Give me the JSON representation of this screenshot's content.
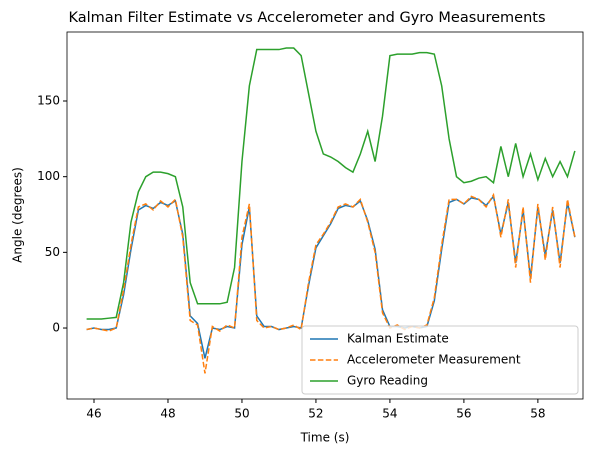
{
  "chart_data": {
    "type": "line",
    "title": "Kalman Filter Estimate vs Accelerometer and Gyro Measurements",
    "x_label": "Time (s)",
    "y_label": "Angle (degrees)",
    "x": [
      45.8,
      46.0,
      46.2,
      46.4,
      46.6,
      46.8,
      47.0,
      47.2,
      47.4,
      47.6,
      47.8,
      48.0,
      48.2,
      48.4,
      48.6,
      48.8,
      49.0,
      49.2,
      49.4,
      49.6,
      49.8,
      50.0,
      50.2,
      50.4,
      50.6,
      50.8,
      51.0,
      51.2,
      51.4,
      51.6,
      51.8,
      52.0,
      52.2,
      52.4,
      52.6,
      52.8,
      53.0,
      53.2,
      53.4,
      53.6,
      53.8,
      54.0,
      54.2,
      54.4,
      54.6,
      54.8,
      55.0,
      55.2,
      55.4,
      55.6,
      55.8,
      56.0,
      56.2,
      56.4,
      56.6,
      56.8,
      57.0,
      57.2,
      57.4,
      57.6,
      57.8,
      58.0,
      58.2,
      58.4,
      58.6,
      58.8,
      59.0
    ],
    "series": [
      {
        "name": "Kalman Estimate",
        "color": "#1f77b4",
        "dashed": false,
        "values": [
          -1,
          0,
          -1,
          -1,
          0,
          22,
          52,
          78,
          81,
          79,
          83,
          81,
          84,
          62,
          8,
          3,
          -20,
          0,
          -1,
          1,
          0,
          55,
          80,
          8,
          1,
          1,
          -1,
          0,
          1,
          0,
          28,
          53,
          61,
          69,
          79,
          81,
          80,
          84,
          71,
          52,
          12,
          1,
          1,
          0,
          1,
          0,
          1,
          18,
          52,
          83,
          85,
          82,
          86,
          85,
          81,
          87,
          62,
          83,
          43,
          78,
          33,
          80,
          48,
          78,
          43,
          83,
          60
        ]
      },
      {
        "name": "Accelerometer Measurement",
        "color": "#ff7f0e",
        "dashed": true,
        "values": [
          -1,
          0,
          -1,
          -2,
          0,
          25,
          55,
          80,
          82,
          78,
          84,
          80,
          85,
          60,
          5,
          2,
          -30,
          1,
          -2,
          2,
          0,
          60,
          82,
          5,
          0,
          1,
          -1,
          0,
          2,
          -1,
          30,
          55,
          62,
          70,
          80,
          82,
          80,
          85,
          70,
          50,
          10,
          0,
          2,
          -1,
          1,
          0,
          2,
          20,
          55,
          85,
          85,
          82,
          87,
          85,
          80,
          88,
          60,
          85,
          40,
          80,
          30,
          82,
          45,
          80,
          40,
          85,
          60
        ]
      },
      {
        "name": "Gyro Reading",
        "color": "#2ca02c",
        "dashed": false,
        "values": [
          6,
          6,
          6,
          6.5,
          7,
          30,
          70,
          90,
          100,
          103,
          103,
          102,
          100,
          80,
          30,
          16,
          16,
          16,
          16,
          17,
          40,
          110,
          160,
          184,
          184,
          184,
          184,
          185,
          185,
          180,
          155,
          130,
          115,
          113,
          110,
          106,
          103,
          115,
          130,
          110,
          140,
          180,
          181,
          181,
          181,
          182,
          182,
          181,
          160,
          125,
          100,
          96,
          97,
          99,
          100,
          96,
          120,
          100,
          122,
          100,
          115,
          98,
          112,
          100,
          110,
          100,
          117
        ]
      }
    ],
    "xlim": [
      45.27,
      59.22
    ],
    "ylim": [
      -46.9,
      195.6
    ],
    "xticks": [
      46,
      48,
      50,
      52,
      54,
      56,
      58
    ],
    "yticks": [
      0,
      50,
      100,
      150
    ],
    "legend": "lower right"
  }
}
